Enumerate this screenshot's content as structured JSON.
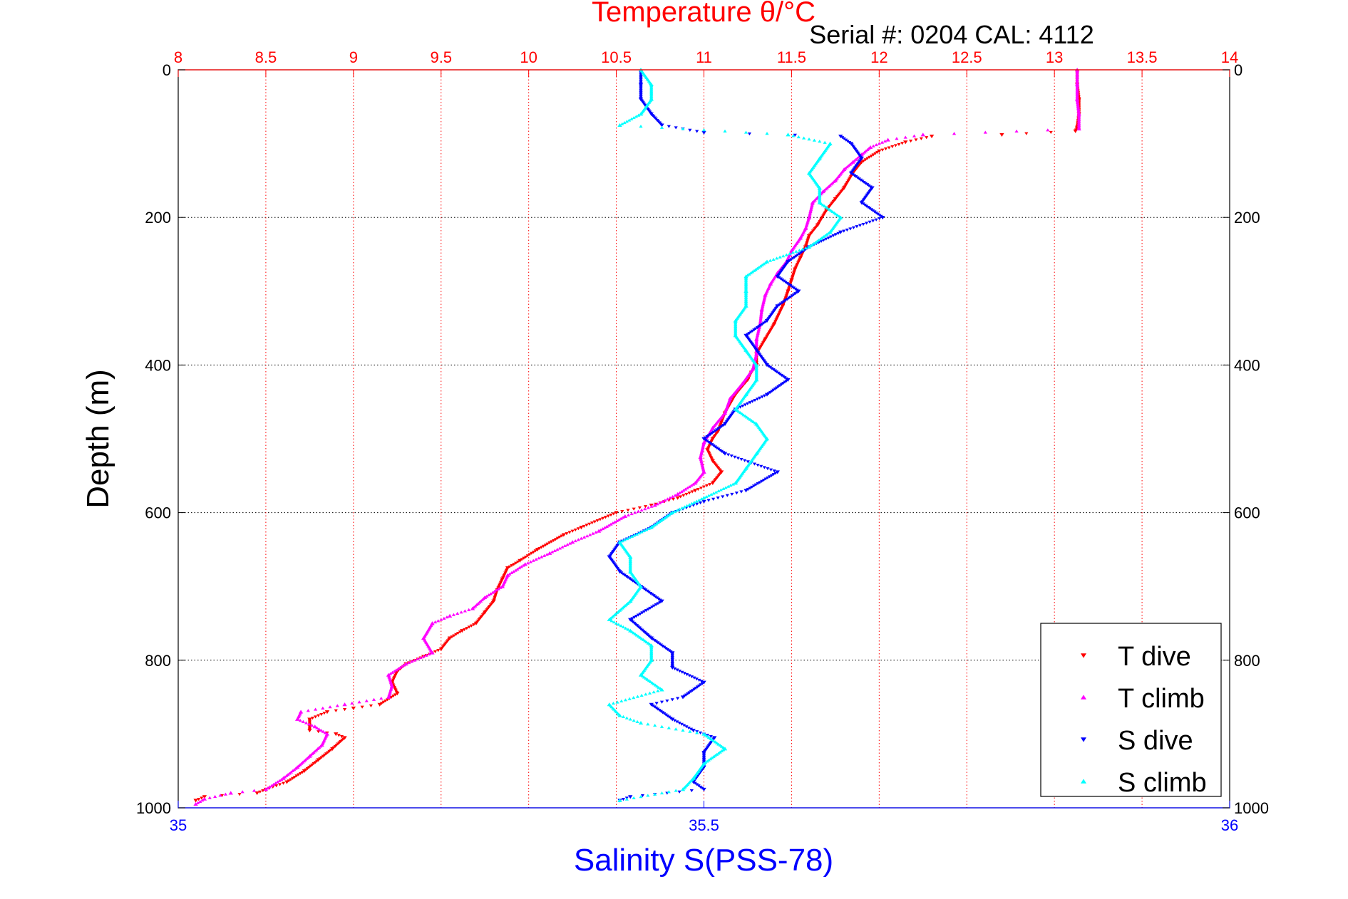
{
  "chart_data": {
    "type": "scatter",
    "title": "Temperature θ/°C",
    "subtitle": "Serial #: 0204  CAL: 4112",
    "ylabel": "Depth (m)",
    "xlabel": "Salinity S(PSS-78)",
    "y_axis": {
      "range": [
        0,
        1000
      ],
      "inverted": true,
      "ticks": [
        0,
        200,
        400,
        600,
        800,
        1000
      ],
      "grid": true
    },
    "top_axis": {
      "quantity": "Temperature",
      "range": [
        8,
        14
      ],
      "ticks": [
        8,
        8.5,
        9,
        9.5,
        10,
        10.5,
        11,
        11.5,
        12,
        12.5,
        13,
        13.5,
        14
      ],
      "tick_labels": [
        "8",
        "8.5",
        "9",
        "9.5",
        "10",
        "10.5",
        "11",
        "11.5",
        "12",
        "12.5",
        "13",
        "13.5",
        "14"
      ],
      "color": "#ff0000",
      "grid": true
    },
    "bottom_axis": {
      "quantity": "Salinity",
      "range": [
        35,
        36
      ],
      "ticks": [
        35,
        35.5,
        36
      ],
      "tick_labels": [
        "35",
        "35.5",
        "36"
      ],
      "color": "#0000ff"
    },
    "legend": {
      "placement": "bottom-right",
      "entries": [
        "T dive",
        "T climb",
        "S dive",
        "S climb"
      ]
    },
    "series": [
      {
        "name": "T dive",
        "axis": "temperature",
        "color": "#ff0000",
        "marker": "triangle-down",
        "points": [
          [
            13.13,
            2
          ],
          [
            13.13,
            20
          ],
          [
            13.14,
            40
          ],
          [
            13.14,
            60
          ],
          [
            13.13,
            78
          ],
          [
            13.12,
            83
          ],
          [
            12.7,
            88
          ],
          [
            12.3,
            90
          ],
          [
            12.15,
            98
          ],
          [
            12.0,
            110
          ],
          [
            11.9,
            125
          ],
          [
            11.85,
            140
          ],
          [
            11.8,
            160
          ],
          [
            11.75,
            175
          ],
          [
            11.7,
            190
          ],
          [
            11.65,
            210
          ],
          [
            11.6,
            225
          ],
          [
            11.58,
            240
          ],
          [
            11.55,
            255
          ],
          [
            11.52,
            270
          ],
          [
            11.5,
            285
          ],
          [
            11.48,
            300
          ],
          [
            11.45,
            320
          ],
          [
            11.4,
            345
          ],
          [
            11.35,
            365
          ],
          [
            11.3,
            385
          ],
          [
            11.3,
            400
          ],
          [
            11.27,
            410
          ],
          [
            11.25,
            420
          ],
          [
            11.18,
            440
          ],
          [
            11.12,
            465
          ],
          [
            11.08,
            490
          ],
          [
            11.05,
            500
          ],
          [
            11.02,
            515
          ],
          [
            11.05,
            530
          ],
          [
            11.1,
            545
          ],
          [
            11.05,
            560
          ],
          [
            10.95,
            570
          ],
          [
            10.85,
            580
          ],
          [
            10.7,
            590
          ],
          [
            10.5,
            600
          ],
          [
            10.3,
            620
          ],
          [
            10.2,
            630
          ],
          [
            10.05,
            650
          ],
          [
            9.95,
            665
          ],
          [
            9.88,
            675
          ],
          [
            9.85,
            690
          ],
          [
            9.82,
            705
          ],
          [
            9.8,
            720
          ],
          [
            9.75,
            735
          ],
          [
            9.7,
            750
          ],
          [
            9.62,
            760
          ],
          [
            9.55,
            770
          ],
          [
            9.5,
            785
          ],
          [
            9.4,
            795
          ],
          [
            9.3,
            805
          ],
          [
            9.25,
            815
          ],
          [
            9.22,
            830
          ],
          [
            9.25,
            845
          ],
          [
            9.15,
            860
          ],
          [
            9.0,
            865
          ],
          [
            8.85,
            870
          ],
          [
            8.75,
            880
          ],
          [
            8.75,
            895
          ],
          [
            8.9,
            900
          ],
          [
            8.95,
            905
          ],
          [
            8.88,
            920
          ],
          [
            8.8,
            935
          ],
          [
            8.72,
            950
          ],
          [
            8.62,
            965
          ],
          [
            8.5,
            975
          ],
          [
            8.45,
            980
          ],
          [
            8.15,
            985
          ],
          [
            8.1,
            990
          ]
        ]
      },
      {
        "name": "T climb",
        "axis": "temperature",
        "color": "#ff00ff",
        "marker": "triangle-up",
        "points": [
          [
            13.13,
            0
          ],
          [
            13.13,
            20
          ],
          [
            13.13,
            40
          ],
          [
            13.14,
            60
          ],
          [
            13.14,
            80
          ],
          [
            12.25,
            88
          ],
          [
            12.05,
            95
          ],
          [
            11.95,
            105
          ],
          [
            11.9,
            115
          ],
          [
            11.85,
            125
          ],
          [
            11.8,
            135
          ],
          [
            11.75,
            150
          ],
          [
            11.68,
            165
          ],
          [
            11.62,
            180
          ],
          [
            11.6,
            200
          ],
          [
            11.58,
            215
          ],
          [
            11.55,
            228
          ],
          [
            11.5,
            245
          ],
          [
            11.47,
            260
          ],
          [
            11.42,
            275
          ],
          [
            11.38,
            290
          ],
          [
            11.35,
            305
          ],
          [
            11.33,
            325
          ],
          [
            11.32,
            345
          ],
          [
            11.3,
            365
          ],
          [
            11.3,
            385
          ],
          [
            11.28,
            405
          ],
          [
            11.22,
            425
          ],
          [
            11.15,
            445
          ],
          [
            11.12,
            465
          ],
          [
            11.05,
            485
          ],
          [
            11.0,
            505
          ],
          [
            10.98,
            525
          ],
          [
            11.0,
            545
          ],
          [
            10.95,
            560
          ],
          [
            10.85,
            575
          ],
          [
            10.72,
            590
          ],
          [
            10.55,
            605
          ],
          [
            10.4,
            625
          ],
          [
            10.25,
            640
          ],
          [
            10.12,
            655
          ],
          [
            9.98,
            670
          ],
          [
            9.88,
            685
          ],
          [
            9.85,
            700
          ],
          [
            9.75,
            715
          ],
          [
            9.68,
            730
          ],
          [
            9.55,
            740
          ],
          [
            9.45,
            750
          ],
          [
            9.4,
            770
          ],
          [
            9.45,
            790
          ],
          [
            9.3,
            805
          ],
          [
            9.2,
            820
          ],
          [
            9.22,
            835
          ],
          [
            9.2,
            850
          ],
          [
            8.95,
            860
          ],
          [
            8.7,
            870
          ],
          [
            8.68,
            880
          ],
          [
            8.78,
            890
          ],
          [
            8.85,
            900
          ],
          [
            8.82,
            915
          ],
          [
            8.75,
            930
          ],
          [
            8.68,
            945
          ],
          [
            8.6,
            960
          ],
          [
            8.5,
            975
          ],
          [
            8.3,
            980
          ],
          [
            8.15,
            988
          ],
          [
            8.1,
            995
          ]
        ]
      },
      {
        "name": "S dive",
        "axis": "salinity",
        "color": "#0000ff",
        "marker": "triangle-down",
        "points": [
          [
            35.44,
            2
          ],
          [
            35.44,
            20
          ],
          [
            35.44,
            40
          ],
          [
            35.45,
            60
          ],
          [
            35.46,
            75
          ],
          [
            35.5,
            85
          ],
          [
            35.63,
            90
          ],
          [
            35.64,
            100
          ],
          [
            35.65,
            120
          ],
          [
            35.64,
            140
          ],
          [
            35.66,
            160
          ],
          [
            35.65,
            180
          ],
          [
            35.67,
            200
          ],
          [
            35.63,
            220
          ],
          [
            35.6,
            240
          ],
          [
            35.58,
            260
          ],
          [
            35.57,
            280
          ],
          [
            35.59,
            300
          ],
          [
            35.57,
            320
          ],
          [
            35.56,
            340
          ],
          [
            35.54,
            360
          ],
          [
            35.55,
            380
          ],
          [
            35.56,
            400
          ],
          [
            35.58,
            420
          ],
          [
            35.56,
            440
          ],
          [
            35.53,
            460
          ],
          [
            35.52,
            480
          ],
          [
            35.5,
            500
          ],
          [
            35.52,
            520
          ],
          [
            35.57,
            545
          ],
          [
            35.54,
            570
          ],
          [
            35.5,
            585
          ],
          [
            35.47,
            600
          ],
          [
            35.45,
            620
          ],
          [
            35.42,
            640
          ],
          [
            35.41,
            660
          ],
          [
            35.42,
            680
          ],
          [
            35.44,
            700
          ],
          [
            35.46,
            720
          ],
          [
            35.43,
            745
          ],
          [
            35.45,
            770
          ],
          [
            35.47,
            790
          ],
          [
            35.47,
            810
          ],
          [
            35.5,
            830
          ],
          [
            35.48,
            850
          ],
          [
            35.45,
            860
          ],
          [
            35.47,
            880
          ],
          [
            35.49,
            895
          ],
          [
            35.51,
            905
          ],
          [
            35.5,
            925
          ],
          [
            35.5,
            945
          ],
          [
            35.49,
            965
          ],
          [
            35.5,
            975
          ],
          [
            35.43,
            985
          ],
          [
            35.42,
            990
          ]
        ]
      },
      {
        "name": "S climb",
        "axis": "salinity",
        "color": "#00ffff",
        "marker": "triangle-up",
        "points": [
          [
            35.44,
            0
          ],
          [
            35.45,
            20
          ],
          [
            35.45,
            40
          ],
          [
            35.44,
            60
          ],
          [
            35.42,
            75
          ],
          [
            35.58,
            88
          ],
          [
            35.62,
            100
          ],
          [
            35.61,
            120
          ],
          [
            35.6,
            140
          ],
          [
            35.61,
            160
          ],
          [
            35.61,
            180
          ],
          [
            35.63,
            200
          ],
          [
            35.62,
            220
          ],
          [
            35.6,
            240
          ],
          [
            35.56,
            260
          ],
          [
            35.54,
            280
          ],
          [
            35.54,
            300
          ],
          [
            35.54,
            320
          ],
          [
            35.53,
            340
          ],
          [
            35.53,
            360
          ],
          [
            35.54,
            380
          ],
          [
            35.55,
            400
          ],
          [
            35.55,
            420
          ],
          [
            35.54,
            440
          ],
          [
            35.53,
            460
          ],
          [
            35.55,
            480
          ],
          [
            35.56,
            500
          ],
          [
            35.55,
            520
          ],
          [
            35.54,
            540
          ],
          [
            35.53,
            560
          ],
          [
            35.5,
            580
          ],
          [
            35.47,
            600
          ],
          [
            35.45,
            620
          ],
          [
            35.42,
            640
          ],
          [
            35.43,
            660
          ],
          [
            35.43,
            680
          ],
          [
            35.44,
            700
          ],
          [
            35.43,
            720
          ],
          [
            35.41,
            745
          ],
          [
            35.43,
            760
          ],
          [
            35.45,
            780
          ],
          [
            35.45,
            800
          ],
          [
            35.44,
            820
          ],
          [
            35.46,
            840
          ],
          [
            35.41,
            860
          ],
          [
            35.42,
            875
          ],
          [
            35.44,
            885
          ],
          [
            35.5,
            900
          ],
          [
            35.52,
            920
          ],
          [
            35.5,
            940
          ],
          [
            35.49,
            960
          ],
          [
            35.48,
            975
          ],
          [
            35.42,
            990
          ]
        ]
      }
    ]
  }
}
